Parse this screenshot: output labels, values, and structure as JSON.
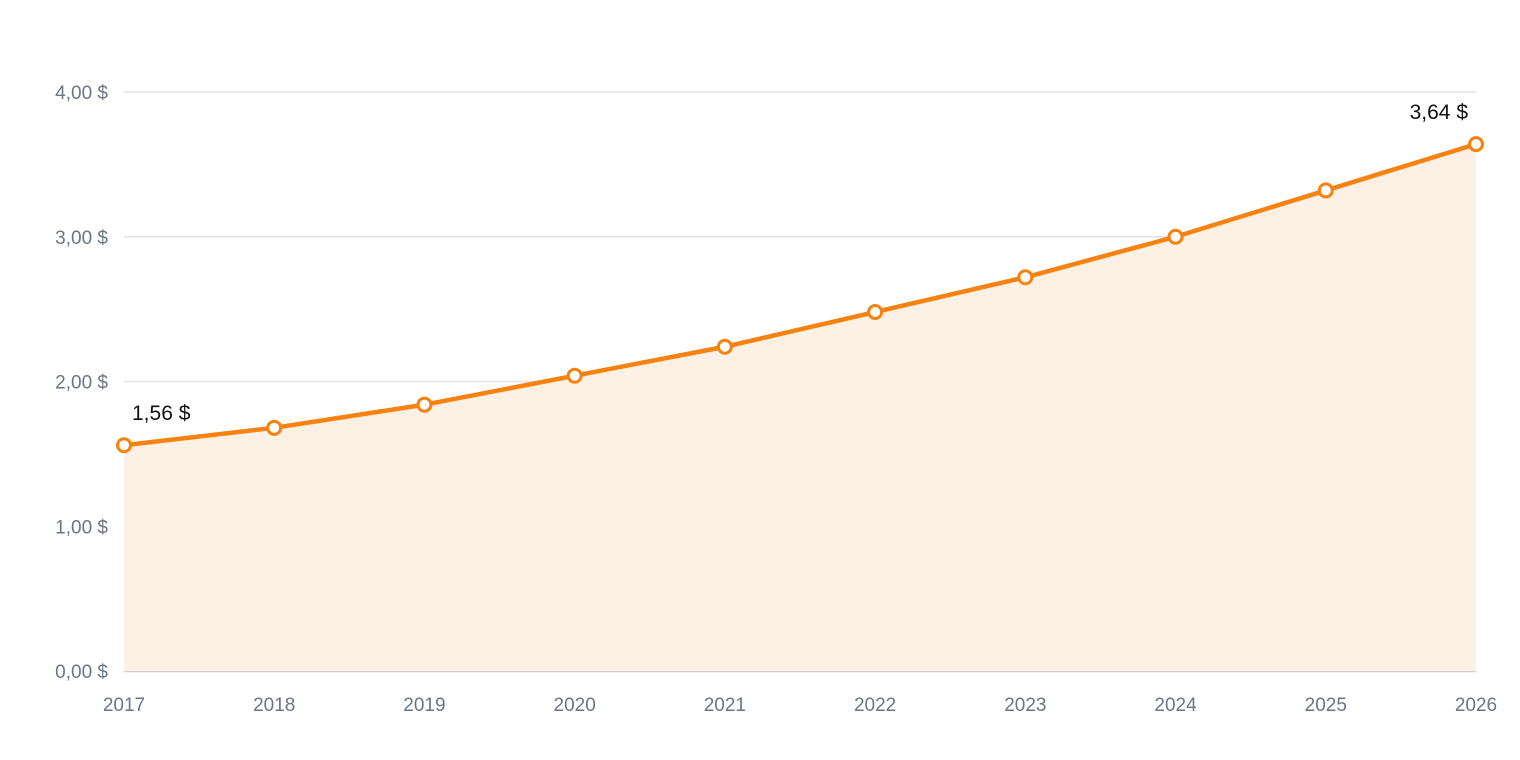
{
  "chart_data": {
    "type": "area",
    "title": "",
    "xlabel": "",
    "ylabel": "",
    "categories": [
      "2017",
      "2018",
      "2019",
      "2020",
      "2021",
      "2022",
      "2023",
      "2024",
      "2025",
      "2026"
    ],
    "series": [
      {
        "values": [
          1.56,
          1.68,
          1.84,
          2.04,
          2.24,
          2.48,
          2.72,
          3.0,
          3.32,
          3.64
        ]
      }
    ],
    "ylim": [
      0,
      4
    ],
    "yticks": [
      {
        "value": 0,
        "label": "0,00 $"
      },
      {
        "value": 1,
        "label": "1,00 $"
      },
      {
        "value": 2,
        "label": "2,00 $"
      },
      {
        "value": 3,
        "label": "3,00 $"
      },
      {
        "value": 4,
        "label": "4,00 $"
      }
    ],
    "data_labels": [
      {
        "index": 0,
        "label": "1,56 $"
      },
      {
        "index": 9,
        "label": "3,64 $"
      }
    ],
    "grid": true,
    "legend": "none",
    "colors": {
      "line": "#f7820f",
      "area": "#fdf1e6",
      "marker_fill": "#ffffff"
    }
  }
}
